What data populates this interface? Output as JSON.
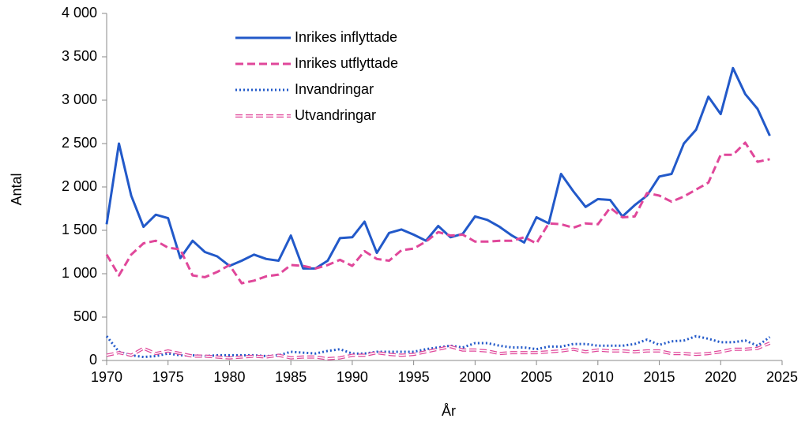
{
  "chart_data": {
    "type": "line",
    "x_label": "År",
    "y_label": "Antal",
    "x": [
      1970,
      1971,
      1972,
      1973,
      1974,
      1975,
      1976,
      1977,
      1978,
      1979,
      1980,
      1981,
      1982,
      1983,
      1984,
      1985,
      1986,
      1987,
      1988,
      1989,
      1990,
      1991,
      1992,
      1993,
      1994,
      1995,
      1996,
      1997,
      1998,
      1999,
      2000,
      2001,
      2002,
      2003,
      2004,
      2005,
      2006,
      2007,
      2008,
      2009,
      2010,
      2011,
      2012,
      2013,
      2014,
      2015,
      2016,
      2017,
      2018,
      2019,
      2020,
      2021,
      2022,
      2023,
      2024
    ],
    "xlim": [
      1970,
      2025
    ],
    "xticks": [
      1970,
      1975,
      1980,
      1985,
      1990,
      1995,
      2000,
      2005,
      2010,
      2015,
      2020,
      2025
    ],
    "ylim": [
      0,
      4000
    ],
    "yticks": [
      0,
      500,
      {
        "value": 1000,
        "label": "1 000"
      },
      {
        "value": 1500,
        "label": "1 500"
      },
      {
        "value": 2000,
        "label": "2 000"
      },
      {
        "value": 2500,
        "label": "2 500"
      },
      {
        "value": 3000,
        "label": "3 000"
      },
      {
        "value": 3500,
        "label": "3 500"
      },
      {
        "value": 4000,
        "label": "4 000"
      }
    ],
    "grid": false,
    "legend": "top-left",
    "series": [
      {
        "name": "Inrikes inflyttade",
        "color": "#2259c9",
        "style": "solid",
        "values": [
          1570,
          2500,
          1900,
          1540,
          1680,
          1640,
          1180,
          1380,
          1250,
          1200,
          1090,
          1150,
          1220,
          1170,
          1150,
          1440,
          1060,
          1060,
          1150,
          1410,
          1420,
          1600,
          1240,
          1470,
          1510,
          1450,
          1380,
          1550,
          1420,
          1460,
          1660,
          1620,
          1540,
          1440,
          1360,
          1650,
          1580,
          2150,
          1950,
          1770,
          1860,
          1850,
          1660,
          1790,
          1900,
          2120,
          2150,
          2500,
          2660,
          3040,
          2840,
          3370,
          3070,
          2900,
          2590
        ]
      },
      {
        "name": "Inrikes utflyttade",
        "color": "#e0479a",
        "style": "dashed",
        "values": [
          1220,
          980,
          1220,
          1350,
          1380,
          1300,
          1280,
          980,
          960,
          1020,
          1100,
          890,
          920,
          970,
          990,
          1100,
          1090,
          1060,
          1100,
          1160,
          1090,
          1260,
          1170,
          1150,
          1270,
          1290,
          1370,
          1480,
          1440,
          1450,
          1370,
          1370,
          1380,
          1380,
          1420,
          1350,
          1580,
          1570,
          1530,
          1580,
          1570,
          1760,
          1650,
          1660,
          1930,
          1900,
          1830,
          1890,
          1970,
          2050,
          2370,
          2370,
          2510,
          2290,
          2320
        ]
      },
      {
        "name": "Invandringar",
        "color": "#2259c9",
        "style": "dotted",
        "values": [
          280,
          100,
          60,
          40,
          50,
          80,
          60,
          60,
          50,
          60,
          60,
          60,
          60,
          50,
          60,
          100,
          90,
          80,
          110,
          130,
          80,
          80,
          100,
          100,
          100,
          100,
          130,
          150,
          170,
          150,
          200,
          200,
          170,
          150,
          150,
          130,
          160,
          160,
          190,
          190,
          170,
          170,
          170,
          190,
          240,
          180,
          220,
          230,
          280,
          250,
          210,
          210,
          230,
          170,
          270
        ]
      },
      {
        "name": "Utvandringar",
        "color": "#e0479a",
        "style": "double-dashed",
        "values": [
          60,
          90,
          60,
          140,
          80,
          110,
          80,
          50,
          50,
          40,
          30,
          40,
          50,
          40,
          60,
          30,
          40,
          40,
          20,
          30,
          60,
          60,
          90,
          70,
          60,
          70,
          100,
          130,
          160,
          120,
          120,
          110,
          80,
          90,
          90,
          90,
          100,
          110,
          130,
          100,
          120,
          110,
          110,
          100,
          110,
          110,
          80,
          80,
          70,
          80,
          100,
          130,
          130,
          140,
          200
        ]
      }
    ]
  }
}
